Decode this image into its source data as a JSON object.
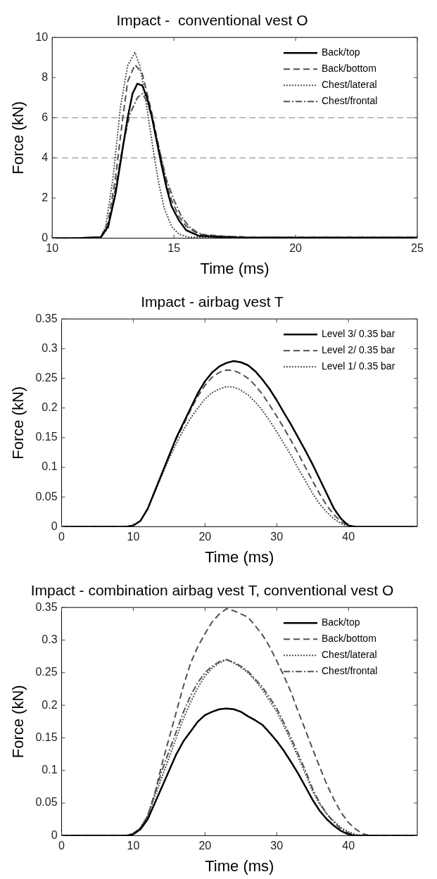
{
  "chart_data": [
    {
      "type": "line",
      "title": "Impact -  conventional vest O",
      "xlabel": "Time (ms)",
      "ylabel": "Force (kN)",
      "xlim": [
        10,
        25
      ],
      "xticks": [
        10,
        15,
        20,
        25
      ],
      "ylim": [
        0,
        10
      ],
      "yticks": [
        0,
        2,
        4,
        6,
        8,
        10
      ],
      "legend": "top right",
      "marker": "none",
      "ref_lines": [
        {
          "axis": "y",
          "value": 6,
          "color": "#808080",
          "line_style": "dashed"
        },
        {
          "axis": "y",
          "value": 4,
          "color": "#808080",
          "line_style": "dashed"
        }
      ],
      "series": [
        {
          "name": "Back/top",
          "color": "#000000",
          "line_style": "solid",
          "x": [
            10,
            11,
            12,
            12.3,
            12.6,
            12.9,
            13.1,
            13.3,
            13.5,
            13.7,
            13.9,
            14.1,
            14.3,
            14.5,
            14.7,
            14.9,
            15.2,
            15.5,
            16,
            17,
            18,
            25
          ],
          "values": [
            0,
            0,
            0.05,
            0.6,
            2.2,
            4.5,
            6,
            7.2,
            7.7,
            7.6,
            7,
            6,
            4.8,
            3.6,
            2.5,
            1.6,
            0.9,
            0.4,
            0.12,
            0.05,
            0.02,
            0.02
          ]
        },
        {
          "name": "Back/bottom",
          "color": "#505050",
          "line_style": "dashed",
          "x": [
            10,
            11,
            12,
            12.3,
            12.6,
            12.9,
            13.1,
            13.4,
            13.7,
            13.9,
            14.1,
            14.3,
            14.5,
            14.7,
            14.9,
            15.2,
            15.5,
            16,
            17,
            18,
            19,
            25
          ],
          "values": [
            0,
            0,
            0.05,
            0.8,
            3,
            6,
            7.8,
            8.65,
            8.2,
            7.2,
            6.2,
            5,
            3.8,
            2.7,
            1.9,
            1.1,
            0.6,
            0.2,
            0.1,
            0.05,
            0.02,
            0.03
          ]
        },
        {
          "name": "Chest/lateral",
          "color": "#505050",
          "line_style": "dotted",
          "x": [
            10,
            11,
            12,
            12.2,
            12.5,
            12.8,
            13.1,
            13.4,
            13.6,
            13.8,
            14,
            14.2,
            14.4,
            14.6,
            14.9,
            15.2,
            15.6,
            25
          ],
          "values": [
            0,
            0,
            0.05,
            0.6,
            3,
            6.5,
            8.6,
            9.25,
            8.6,
            7.2,
            5.6,
            4,
            2.6,
            1.5,
            0.6,
            0.2,
            0.05,
            0.02
          ]
        },
        {
          "name": "Chest/frontal",
          "color": "#505050",
          "line_style": "dashdot",
          "x": [
            10,
            11,
            12,
            12.3,
            12.6,
            12.9,
            13.2,
            13.5,
            13.7,
            13.9,
            14.1,
            14.3,
            14.5,
            14.7,
            15,
            15.3,
            15.6,
            16,
            16.5,
            17,
            18,
            25
          ],
          "values": [
            0,
            0,
            0.05,
            0.5,
            2.5,
            4.6,
            6.2,
            7,
            7.2,
            6.8,
            6,
            5,
            3.9,
            2.9,
            1.9,
            1.1,
            0.6,
            0.25,
            0.1,
            0.1,
            0.05,
            0.05
          ]
        }
      ]
    },
    {
      "type": "line",
      "title": "Impact - airbag vest T",
      "xlabel": "Time (ms)",
      "ylabel": "Force (kN)",
      "xlim": [
        0,
        49.6
      ],
      "xticks": [
        0,
        10,
        20,
        30,
        40
      ],
      "ylim": [
        0,
        0.35
      ],
      "yticks": [
        0,
        0.05,
        0.1,
        0.15,
        0.2,
        0.25,
        0.3,
        0.35
      ],
      "legend": "top right",
      "marker": "none",
      "series": [
        {
          "name": "Level 3/ 0.35 bar",
          "color": "#000000",
          "line_style": "solid",
          "x": [
            0,
            9,
            10,
            11,
            12,
            13,
            14,
            15,
            16,
            17,
            18,
            19,
            20,
            21,
            22,
            23,
            24,
            25,
            26,
            27,
            28,
            29,
            30,
            31,
            32,
            33,
            34,
            35,
            36,
            37,
            38,
            39,
            40,
            41,
            49.6
          ],
          "values": [
            0,
            0,
            0.002,
            0.01,
            0.03,
            0.06,
            0.09,
            0.12,
            0.15,
            0.175,
            0.2,
            0.225,
            0.245,
            0.26,
            0.27,
            0.276,
            0.279,
            0.277,
            0.272,
            0.262,
            0.248,
            0.232,
            0.213,
            0.192,
            0.172,
            0.15,
            0.128,
            0.105,
            0.08,
            0.055,
            0.03,
            0.013,
            0.002,
            0,
            0
          ]
        },
        {
          "name": "Level 2/ 0.35 bar",
          "color": "#505050",
          "line_style": "dashed",
          "x": [
            0,
            9,
            10,
            11,
            12,
            13,
            14,
            15,
            16,
            17,
            18,
            19,
            20,
            21,
            22,
            23,
            24,
            25,
            26,
            27,
            28,
            29,
            30,
            31,
            32,
            33,
            34,
            35,
            36,
            37,
            38,
            39,
            40.3
          ],
          "values": [
            0,
            0,
            0.002,
            0.01,
            0.03,
            0.06,
            0.09,
            0.12,
            0.148,
            0.172,
            0.197,
            0.22,
            0.238,
            0.252,
            0.26,
            0.264,
            0.263,
            0.258,
            0.25,
            0.238,
            0.223,
            0.205,
            0.186,
            0.166,
            0.145,
            0.123,
            0.1,
            0.077,
            0.055,
            0.035,
            0.02,
            0.008,
            0
          ]
        },
        {
          "name": "Level 1/ 0.35 bar",
          "color": "#505050",
          "line_style": "dotted",
          "x": [
            0,
            9,
            10,
            11,
            12,
            13,
            14,
            15,
            16,
            17,
            18,
            19,
            20,
            21,
            22,
            23,
            24,
            25,
            26,
            27,
            28,
            29,
            30,
            31,
            32,
            33,
            34,
            35,
            36,
            37,
            38,
            39,
            39.8
          ],
          "values": [
            0,
            0,
            0.002,
            0.01,
            0.03,
            0.058,
            0.087,
            0.115,
            0.14,
            0.163,
            0.183,
            0.2,
            0.215,
            0.226,
            0.232,
            0.236,
            0.235,
            0.23,
            0.222,
            0.21,
            0.196,
            0.179,
            0.16,
            0.14,
            0.12,
            0.098,
            0.077,
            0.056,
            0.038,
            0.024,
            0.013,
            0.005,
            0
          ]
        }
      ]
    },
    {
      "type": "line",
      "title": "Impact - combination airbag vest T, conventional vest O",
      "xlabel": "Time (ms)",
      "ylabel": "Force (kN)",
      "xlim": [
        0,
        49.6
      ],
      "xticks": [
        0,
        10,
        20,
        30,
        40
      ],
      "ylim": [
        0,
        0.35
      ],
      "yticks": [
        0,
        0.05,
        0.1,
        0.15,
        0.2,
        0.25,
        0.3,
        0.35
      ],
      "legend": "top right",
      "marker": "none",
      "series": [
        {
          "name": "Back/top",
          "color": "#000000",
          "line_style": "solid",
          "x": [
            0,
            9,
            10,
            11,
            12,
            13,
            14,
            15,
            16,
            17,
            18,
            19,
            20,
            21,
            22,
            23,
            24,
            25,
            26,
            27,
            28,
            29,
            30,
            31,
            32,
            33,
            34,
            35,
            36,
            37,
            38,
            39,
            40,
            41,
            49.6
          ],
          "values": [
            0,
            0,
            0.002,
            0.01,
            0.025,
            0.05,
            0.075,
            0.1,
            0.125,
            0.145,
            0.16,
            0.175,
            0.185,
            0.19,
            0.194,
            0.195,
            0.194,
            0.19,
            0.183,
            0.177,
            0.17,
            0.158,
            0.145,
            0.13,
            0.113,
            0.095,
            0.075,
            0.055,
            0.038,
            0.025,
            0.015,
            0.007,
            0.002,
            0,
            0
          ]
        },
        {
          "name": "Back/bottom",
          "color": "#505050",
          "line_style": "dashed",
          "x": [
            0,
            9,
            10,
            11,
            12,
            13,
            14,
            15,
            16,
            17,
            18,
            19,
            20,
            21,
            22,
            23,
            24,
            25,
            26,
            27,
            28,
            29,
            30,
            31,
            32,
            33,
            34,
            35,
            36,
            37,
            38,
            39,
            40,
            41,
            42,
            43,
            49.6
          ],
          "values": [
            0,
            0,
            0.003,
            0.012,
            0.03,
            0.065,
            0.11,
            0.15,
            0.19,
            0.23,
            0.265,
            0.29,
            0.31,
            0.328,
            0.34,
            0.348,
            0.345,
            0.34,
            0.335,
            0.322,
            0.308,
            0.29,
            0.268,
            0.245,
            0.22,
            0.19,
            0.162,
            0.133,
            0.105,
            0.078,
            0.055,
            0.035,
            0.02,
            0.01,
            0.003,
            0,
            0
          ]
        },
        {
          "name": "Chest/lateral",
          "color": "#505050",
          "line_style": "dotted",
          "x": [
            0,
            9,
            10,
            11,
            12,
            13,
            14,
            15,
            16,
            17,
            18,
            19,
            20,
            21,
            22,
            23,
            24,
            25,
            26,
            27,
            28,
            29,
            30,
            31,
            32,
            33,
            34,
            35,
            36,
            37,
            38,
            39,
            40,
            41,
            42,
            49.6
          ],
          "values": [
            0,
            0,
            0.003,
            0.012,
            0.03,
            0.06,
            0.09,
            0.12,
            0.15,
            0.18,
            0.205,
            0.227,
            0.245,
            0.257,
            0.265,
            0.27,
            0.265,
            0.258,
            0.25,
            0.238,
            0.224,
            0.207,
            0.19,
            0.168,
            0.145,
            0.12,
            0.095,
            0.068,
            0.048,
            0.033,
            0.022,
            0.012,
            0.006,
            0.002,
            0,
            0
          ]
        },
        {
          "name": "Chest/frontal",
          "color": "#505050",
          "line_style": "dashdot",
          "x": [
            0,
            9,
            10,
            11,
            12,
            13,
            14,
            15,
            16,
            17,
            18,
            19,
            20,
            21,
            22,
            23,
            24,
            25,
            26,
            27,
            28,
            29,
            30,
            31,
            32,
            33,
            34,
            35,
            36,
            37,
            38,
            39,
            40,
            41,
            49.6
          ],
          "values": [
            0,
            0,
            0.003,
            0.012,
            0.03,
            0.065,
            0.1,
            0.13,
            0.16,
            0.19,
            0.215,
            0.235,
            0.25,
            0.26,
            0.267,
            0.27,
            0.266,
            0.26,
            0.252,
            0.24,
            0.228,
            0.212,
            0.195,
            0.173,
            0.15,
            0.125,
            0.1,
            0.072,
            0.05,
            0.033,
            0.02,
            0.01,
            0.004,
            0,
            0
          ]
        }
      ]
    }
  ]
}
